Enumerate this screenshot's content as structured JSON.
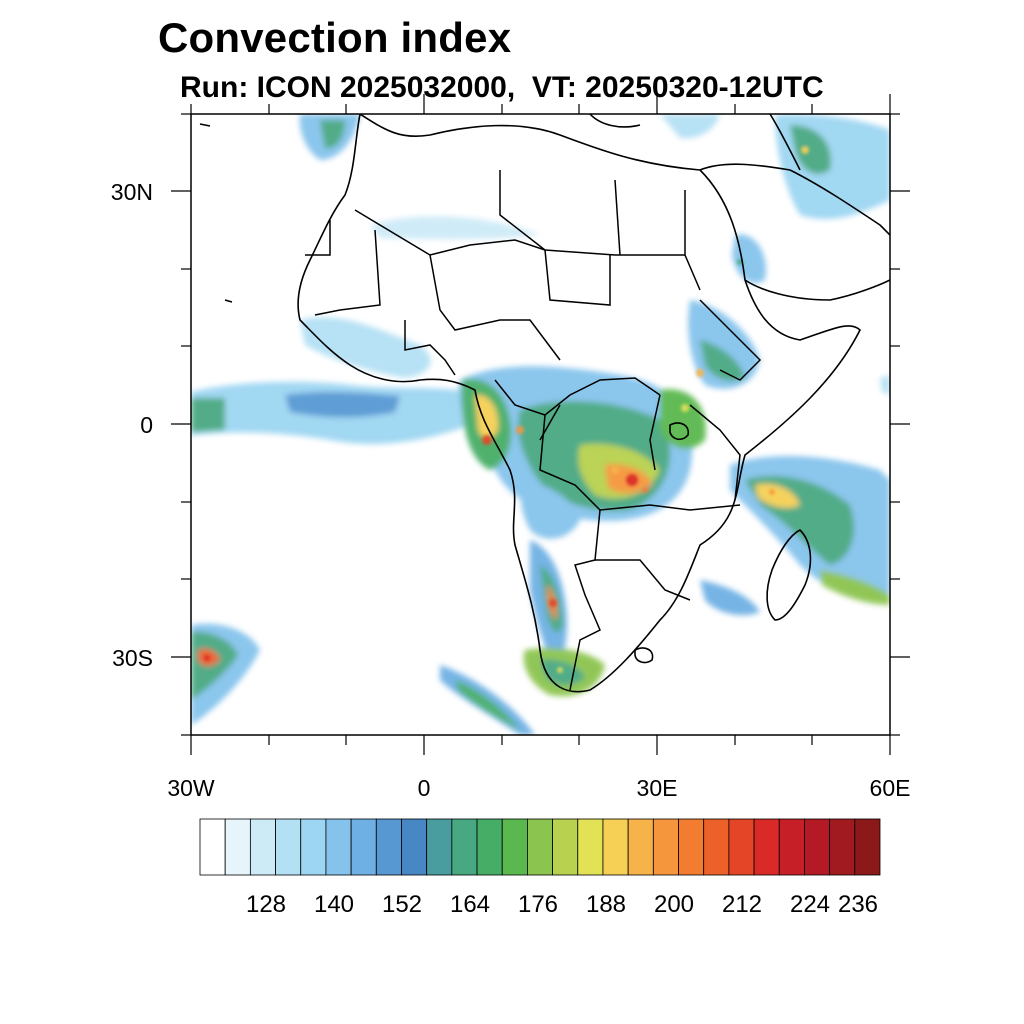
{
  "title": "Convection index",
  "subtitle": "Run: ICON 2025032000,  VT: 20250320-12UTC",
  "map": {
    "lon_range": [
      -30,
      60
    ],
    "lat_range": [
      -40,
      40
    ],
    "lat_tick_labels": [
      "30N",
      "0",
      "30S"
    ],
    "lon_tick_labels": [
      "30W",
      "0",
      "30E",
      "60E"
    ]
  },
  "colorbar": {
    "colors": [
      "#ffffff",
      "#e6f4fb",
      "#cdeaf7",
      "#b4e0f4",
      "#9dd6f2",
      "#85c3ec",
      "#6eb0e4",
      "#5798d3",
      "#4788c4",
      "#4a9d9f",
      "#48a882",
      "#46ad66",
      "#5ab84e",
      "#8cc450",
      "#b8d14e",
      "#e3e256",
      "#f6d054",
      "#f7b249",
      "#f5963d",
      "#f27d31",
      "#ec6029",
      "#e34526",
      "#d92a27",
      "#c61f27",
      "#b41a25",
      "#a01a20",
      "#8c1919"
    ],
    "tick_labels": [
      "128",
      "140",
      "152",
      "164",
      "176",
      "188",
      "200",
      "212",
      "224",
      "236"
    ]
  }
}
